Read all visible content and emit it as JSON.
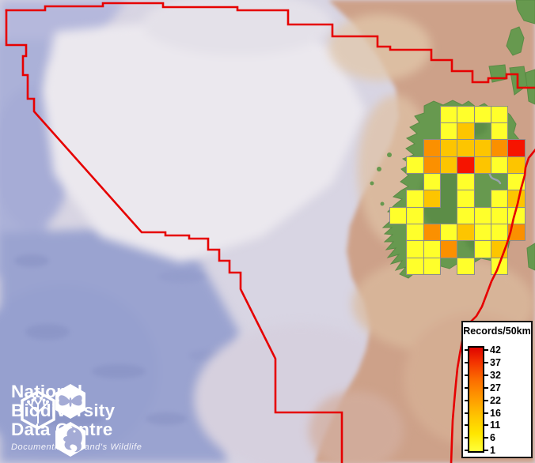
{
  "legend": {
    "title": "Records/50km",
    "labels": [
      "42",
      "37",
      "32",
      "27",
      "22",
      "16",
      "11",
      "6",
      "1"
    ]
  },
  "logo": {
    "line1": "National",
    "line2": "Biodiversity",
    "line3": "Data Centre",
    "tagline": "Documenting Ireland's Wildlife",
    "hex_icons": [
      "tree-icon",
      "butterfly-icon",
      "seahorse-icon"
    ]
  },
  "map": {
    "colors": {
      "cell_yellow": "#ffff2b",
      "cell_gold": "#fdc500",
      "cell_orange": "#fb9000",
      "cell_red": "#f61400",
      "grid_line": "#8c8c8c",
      "boundary_red": "#e60000",
      "sea_deep": "#9aa3d0",
      "sea_shelf": "#ebe8ee",
      "land_tan": "#cda189",
      "land_green": "#67994f",
      "river_grey": "#98a2b0"
    },
    "grid": {
      "origin_x": 470.5,
      "origin_y": 133.5,
      "cell_size": 21.35,
      "cells": [
        {
          "c": 4,
          "r": 0,
          "v": "Y"
        },
        {
          "c": 5,
          "r": 0,
          "v": "Y"
        },
        {
          "c": 6,
          "r": 0,
          "v": "Y"
        },
        {
          "c": 7,
          "r": 0,
          "v": "Y"
        },
        {
          "c": 4,
          "r": 1,
          "v": "Y"
        },
        {
          "c": 5,
          "r": 1,
          "v": "G"
        },
        {
          "c": 7,
          "r": 1,
          "v": "Y"
        },
        {
          "c": 3,
          "r": 2,
          "v": "O"
        },
        {
          "c": 4,
          "r": 2,
          "v": "G"
        },
        {
          "c": 5,
          "r": 2,
          "v": "G"
        },
        {
          "c": 6,
          "r": 2,
          "v": "G"
        },
        {
          "c": 7,
          "r": 2,
          "v": "O"
        },
        {
          "c": 8,
          "r": 2,
          "v": "R"
        },
        {
          "c": 2,
          "r": 3,
          "v": "Y"
        },
        {
          "c": 3,
          "r": 3,
          "v": "O"
        },
        {
          "c": 4,
          "r": 3,
          "v": "G"
        },
        {
          "c": 5,
          "r": 3,
          "v": "R"
        },
        {
          "c": 6,
          "r": 3,
          "v": "G"
        },
        {
          "c": 7,
          "r": 3,
          "v": "Y"
        },
        {
          "c": 8,
          "r": 3,
          "v": "G"
        },
        {
          "c": 3,
          "r": 4,
          "v": "Y"
        },
        {
          "c": 5,
          "r": 4,
          "v": "Y"
        },
        {
          "c": 8,
          "r": 4,
          "v": "Y"
        },
        {
          "c": 2,
          "r": 5,
          "v": "Y"
        },
        {
          "c": 3,
          "r": 5,
          "v": "G"
        },
        {
          "c": 5,
          "r": 5,
          "v": "Y"
        },
        {
          "c": 7,
          "r": 5,
          "v": "Y"
        },
        {
          "c": 8,
          "r": 5,
          "v": "G"
        },
        {
          "c": 1,
          "r": 6,
          "v": "Y"
        },
        {
          "c": 2,
          "r": 6,
          "v": "Y"
        },
        {
          "c": 5,
          "r": 6,
          "v": "Y"
        },
        {
          "c": 6,
          "r": 6,
          "v": "Y"
        },
        {
          "c": 7,
          "r": 6,
          "v": "Y"
        },
        {
          "c": 8,
          "r": 6,
          "v": "Y"
        },
        {
          "c": 2,
          "r": 7,
          "v": "Y"
        },
        {
          "c": 3,
          "r": 7,
          "v": "O"
        },
        {
          "c": 4,
          "r": 7,
          "v": "Y"
        },
        {
          "c": 5,
          "r": 7,
          "v": "G"
        },
        {
          "c": 6,
          "r": 7,
          "v": "Y"
        },
        {
          "c": 7,
          "r": 7,
          "v": "Y"
        },
        {
          "c": 8,
          "r": 7,
          "v": "O"
        },
        {
          "c": 2,
          "r": 8,
          "v": "Y"
        },
        {
          "c": 3,
          "r": 8,
          "v": "Y"
        },
        {
          "c": 4,
          "r": 8,
          "v": "O"
        },
        {
          "c": 6,
          "r": 8,
          "v": "Y"
        },
        {
          "c": 7,
          "r": 8,
          "v": "G"
        },
        {
          "c": 2,
          "r": 9,
          "v": "Y"
        },
        {
          "c": 3,
          "r": 9,
          "v": "Y"
        },
        {
          "c": 5,
          "r": 9,
          "v": "Y"
        },
        {
          "c": 7,
          "r": 9,
          "v": "Y"
        }
      ]
    }
  }
}
